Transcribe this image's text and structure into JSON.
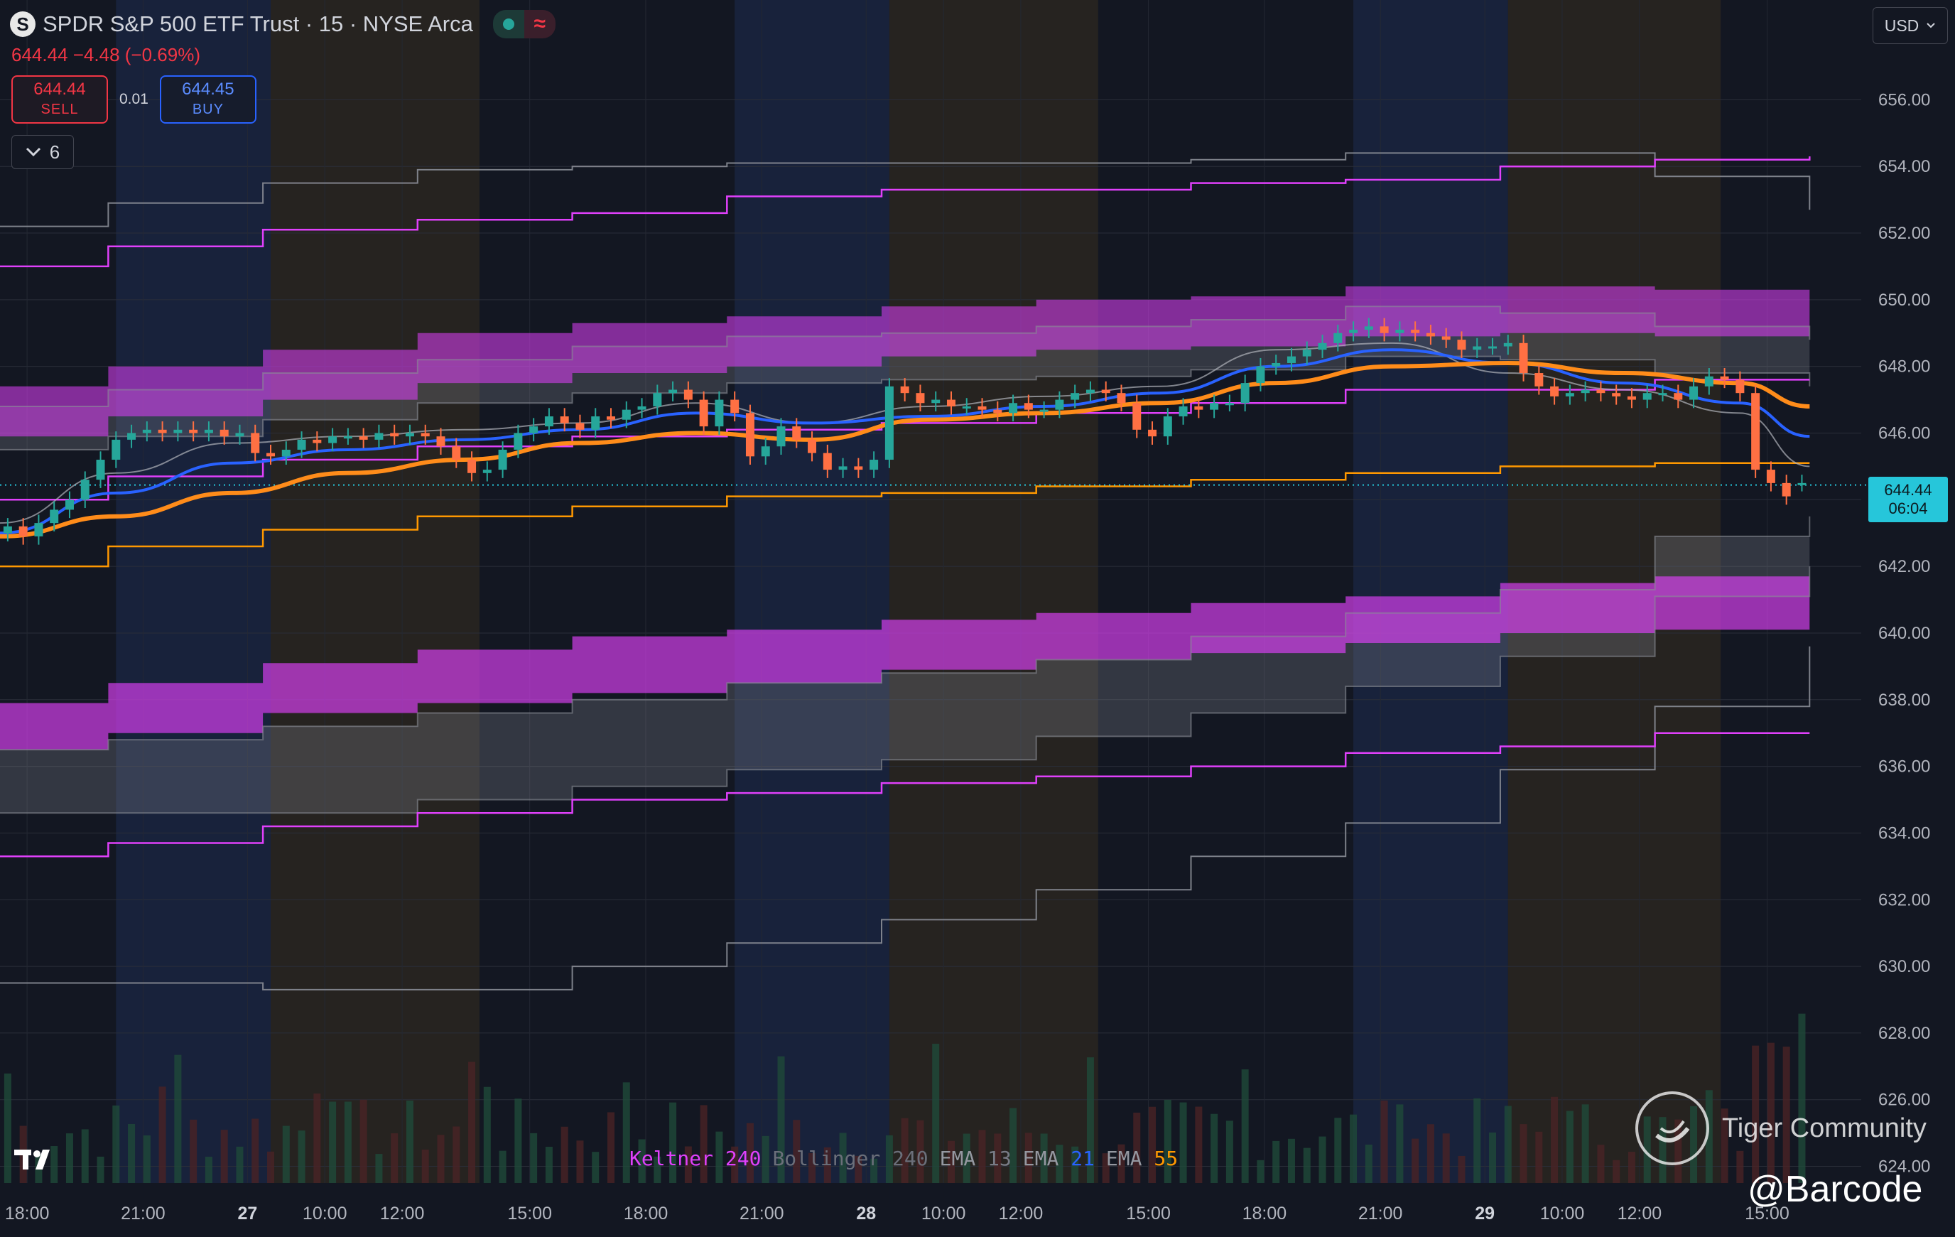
{
  "header": {
    "logo_letter": "S",
    "title": "SPDR S&P 500 ETF Trust · 15 · NYSE Arca",
    "quote": "644.44 −4.48 (−0.69%)",
    "sell_price": "644.44",
    "sell_label": "SELL",
    "spread": "0.01",
    "buy_price": "644.45",
    "buy_label": "BUY",
    "indicator_count": "6",
    "currency": "USD",
    "wave_glyph": "≈"
  },
  "price_tag": {
    "price": "644.44",
    "countdown": "06:04"
  },
  "legend": [
    {
      "name": "Keltner",
      "param": "240",
      "name_color": "#e040fb",
      "param_color": "#e040fb"
    },
    {
      "name": "Bollinger",
      "param": "240",
      "name_color": "#6b6f7a",
      "param_color": "#6b6f7a"
    },
    {
      "name": "EMA",
      "param": "13",
      "name_color": "#9598a1",
      "param_color": "#787b86"
    },
    {
      "name": "EMA",
      "param": "21",
      "name_color": "#9598a1",
      "param_color": "#2962ff"
    },
    {
      "name": "EMA",
      "param": "55",
      "name_color": "#9598a1",
      "param_color": "#ff9800"
    }
  ],
  "watermark": {
    "brand": "Tiger Community",
    "handle": "@Barcode"
  },
  "colors": {
    "background": "#131722",
    "up": "#26a69a",
    "down": "#ff7043",
    "keltner": "#e040fb",
    "bollinger": "#8a8d96",
    "ema13": "#b0b3ba",
    "ema21": "#2962ff",
    "ema55": "#ff8c1a",
    "last_price": "#26c6da",
    "session_pre": "#1a2440",
    "session_post": "#2a2620"
  },
  "chart_data": {
    "type": "line",
    "ylim": [
      623.5,
      657.5
    ],
    "y_ticks": [
      "656.00",
      "654.00",
      "652.00",
      "650.00",
      "648.00",
      "646.00",
      "644.00",
      "642.00",
      "640.00",
      "638.00",
      "636.00",
      "634.00",
      "632.00",
      "630.00",
      "628.00",
      "626.00",
      "624.00"
    ],
    "x_ticks": [
      "18:00",
      "21:00",
      "27",
      "10:00",
      "12:00",
      "15:00",
      "18:00",
      "21:00",
      "28",
      "10:00",
      "12:00",
      "15:00",
      "18:00",
      "21:00",
      "29",
      "10:00",
      "12:00",
      "15:00"
    ],
    "x_tick_pos": [
      0.7,
      3.7,
      6.4,
      8.4,
      10.4,
      13.7,
      16.7,
      19.7,
      22.4,
      24.4,
      26.4,
      29.7,
      32.7,
      35.7,
      38.4,
      40.4,
      42.4,
      45.7
    ],
    "sessions": [
      {
        "type": "pre",
        "from": 3.0,
        "to": 7.0
      },
      {
        "type": "post",
        "from": 7.0,
        "to": 12.4
      },
      {
        "type": "pre",
        "from": 19.0,
        "to": 23.0
      },
      {
        "type": "post",
        "from": 23.0,
        "to": 28.4
      },
      {
        "type": "pre",
        "from": 35.0,
        "to": 39.0
      },
      {
        "type": "post",
        "from": 39.0,
        "to": 44.5
      }
    ],
    "last_price": 644.44,
    "band_x": [
      0,
      2.8,
      6.8,
      10.8,
      14.8,
      18.8,
      22.8,
      26.8,
      30.8,
      34.8,
      38.8,
      42.8,
      46.8
    ],
    "keltner_outer_upper": [
      651.0,
      651.6,
      652.1,
      652.4,
      652.6,
      653.1,
      653.3,
      653.3,
      653.5,
      653.6,
      654.0,
      654.2,
      654.3
    ],
    "keltner_band_upper": [
      647.4,
      648.0,
      648.5,
      649.0,
      649.3,
      649.5,
      649.8,
      650.0,
      650.1,
      650.4,
      650.4,
      650.3,
      650.3
    ],
    "keltner_band_lower": [
      645.9,
      646.5,
      647.0,
      647.5,
      647.8,
      648.0,
      648.3,
      648.5,
      648.6,
      648.9,
      649.0,
      648.9,
      648.9
    ],
    "keltner_mid_upper": [
      644.0,
      644.7,
      645.2,
      645.6,
      645.9,
      646.1,
      646.3,
      646.6,
      646.9,
      647.3,
      647.3,
      647.6,
      647.6
    ],
    "keltner_mid_lower": [
      642.0,
      642.6,
      643.1,
      643.5,
      643.8,
      644.1,
      644.2,
      644.4,
      644.6,
      644.8,
      645.0,
      645.1,
      645.1
    ],
    "keltner_lower_band_upper": [
      637.9,
      638.5,
      639.1,
      639.5,
      639.9,
      640.1,
      640.4,
      640.6,
      640.9,
      641.1,
      641.5,
      641.7,
      641.7
    ],
    "keltner_lower_band_lower": [
      636.5,
      637.0,
      637.6,
      637.9,
      638.2,
      638.5,
      638.9,
      639.2,
      639.4,
      639.7,
      640.0,
      640.1,
      640.1
    ],
    "keltner_outer_lower": [
      633.3,
      633.7,
      634.2,
      634.6,
      635.0,
      635.2,
      635.5,
      635.7,
      636.0,
      636.4,
      636.6,
      637.0,
      637.0
    ],
    "boll_upper": [
      652.2,
      652.9,
      653.5,
      653.9,
      654.0,
      654.1,
      654.1,
      654.1,
      654.2,
      654.4,
      654.4,
      653.7,
      652.7
    ],
    "boll_band_upper": [
      646.8,
      647.3,
      647.8,
      648.2,
      648.6,
      648.9,
      649.0,
      649.2,
      649.4,
      649.8,
      649.6,
      649.2,
      648.8
    ],
    "boll_band_lower": [
      645.5,
      645.9,
      646.4,
      646.9,
      647.2,
      647.5,
      647.6,
      647.7,
      647.9,
      648.3,
      648.2,
      647.8,
      647.4
    ],
    "boll_lower_band_upper": [
      636.5,
      636.8,
      637.2,
      637.6,
      638.0,
      638.5,
      638.8,
      639.2,
      639.9,
      640.6,
      641.3,
      642.9,
      643.5
    ],
    "boll_lower_band_lower": [
      634.6,
      634.6,
      634.6,
      635.0,
      635.4,
      635.9,
      636.2,
      636.9,
      637.6,
      638.4,
      639.3,
      641.1,
      642.0
    ],
    "boll_lower": [
      629.5,
      629.5,
      629.3,
      629.3,
      630.0,
      630.7,
      631.4,
      632.3,
      633.3,
      634.3,
      635.9,
      637.8,
      639.6
    ],
    "series": [
      {
        "name": "EMA 13",
        "x": [
          0,
          3,
          6,
          9,
          12,
          15,
          18,
          21,
          24,
          27,
          30,
          33,
          36,
          39,
          42,
          45,
          46.8
        ],
        "values": [
          643.3,
          644.8,
          645.7,
          645.9,
          646.1,
          646.3,
          646.9,
          646.3,
          646.8,
          647.1,
          647.4,
          648.5,
          648.7,
          647.8,
          647.3,
          646.6,
          645.0
        ]
      },
      {
        "name": "EMA 21",
        "x": [
          0,
          3,
          6,
          9,
          12,
          15,
          18,
          21,
          24,
          27,
          30,
          33,
          36,
          39,
          42,
          45,
          46.8
        ],
        "values": [
          643.0,
          644.2,
          645.1,
          645.5,
          645.8,
          646.1,
          646.6,
          646.3,
          646.5,
          646.8,
          647.2,
          648.0,
          648.5,
          648.1,
          647.5,
          646.9,
          645.9
        ]
      },
      {
        "name": "EMA 55",
        "x": [
          0,
          3,
          6,
          9,
          12,
          15,
          18,
          21,
          24,
          27,
          30,
          33,
          36,
          39,
          42,
          45,
          46.8
        ],
        "values": [
          642.9,
          643.5,
          644.2,
          644.8,
          645.2,
          645.7,
          646.0,
          645.8,
          646.4,
          646.6,
          646.9,
          647.5,
          648.0,
          648.1,
          647.8,
          647.5,
          646.8
        ]
      }
    ],
    "candles": {
      "x": [
        0.2,
        0.6,
        1.0,
        1.4,
        1.8,
        2.2,
        2.6,
        3.0,
        3.4,
        3.8,
        4.2,
        4.6,
        5.0,
        5.4,
        5.8,
        6.2,
        6.6,
        7.0,
        7.4,
        7.8,
        8.2,
        8.6,
        9.0,
        9.4,
        9.8,
        10.2,
        10.6,
        11.0,
        11.4,
        11.8,
        12.2,
        12.6,
        13.0,
        13.4,
        13.8,
        14.2,
        14.6,
        15.0,
        15.4,
        15.8,
        16.2,
        16.6,
        17.0,
        17.4,
        17.8,
        18.2,
        18.6,
        19.0,
        19.4,
        19.8,
        20.2,
        20.6,
        21.0,
        21.4,
        21.8,
        22.2,
        22.6,
        23.0,
        23.4,
        23.8,
        24.2,
        24.6,
        25.0,
        25.4,
        25.8,
        26.2,
        26.6,
        27.0,
        27.4,
        27.8,
        28.2,
        28.6,
        29.0,
        29.4,
        29.8,
        30.2,
        30.6,
        31.0,
        31.4,
        31.8,
        32.2,
        32.6,
        33.0,
        33.4,
        33.8,
        34.2,
        34.6,
        35.0,
        35.4,
        35.8,
        36.2,
        36.6,
        37.0,
        37.4,
        37.8,
        38.2,
        38.6,
        39.0,
        39.4,
        39.8,
        40.2,
        40.6,
        41.0,
        41.4,
        41.8,
        42.2,
        42.6,
        43.0,
        43.4,
        43.8,
        44.2,
        44.6,
        45.0,
        45.4,
        45.8,
        46.2,
        46.6
      ],
      "open": [
        643.0,
        643.2,
        642.9,
        643.3,
        643.7,
        644.0,
        644.6,
        645.2,
        645.8,
        646.0,
        646.1,
        646.0,
        646.1,
        646.0,
        646.1,
        645.9,
        646.0,
        645.4,
        645.3,
        645.5,
        645.8,
        645.7,
        645.9,
        645.9,
        645.8,
        646.0,
        645.9,
        646.0,
        645.9,
        645.6,
        645.2,
        644.8,
        644.9,
        645.5,
        646.0,
        646.2,
        646.5,
        646.3,
        646.1,
        646.5,
        646.4,
        646.7,
        646.8,
        647.2,
        647.3,
        647.0,
        646.2,
        647.0,
        646.6,
        645.3,
        645.6,
        646.2,
        645.8,
        645.4,
        644.9,
        645.0,
        644.9,
        645.2,
        647.4,
        647.2,
        646.9,
        647.0,
        646.8,
        646.8,
        646.7,
        646.6,
        646.9,
        646.7,
        646.7,
        647.0,
        647.2,
        647.3,
        647.2,
        646.9,
        646.1,
        645.9,
        646.5,
        646.8,
        646.7,
        646.9,
        646.9,
        647.5,
        648.0,
        648.1,
        648.3,
        648.5,
        648.7,
        649.0,
        649.1,
        649.2,
        649.0,
        649.1,
        649.0,
        648.9,
        648.8,
        648.5,
        648.6,
        648.6,
        648.7,
        647.8,
        647.4,
        647.1,
        647.2,
        647.3,
        647.2,
        647.1,
        647.0,
        647.2,
        647.2,
        647.0,
        647.4,
        647.7,
        647.6,
        647.2,
        644.9,
        644.5,
        644.5
      ],
      "close": [
        643.2,
        642.9,
        643.3,
        643.7,
        644.0,
        644.6,
        645.2,
        645.8,
        646.0,
        646.1,
        646.0,
        646.1,
        646.0,
        646.1,
        645.9,
        646.0,
        645.4,
        645.3,
        645.5,
        645.8,
        645.7,
        645.9,
        645.9,
        645.8,
        646.0,
        645.9,
        646.0,
        645.9,
        645.6,
        645.2,
        644.8,
        644.9,
        645.5,
        646.0,
        646.2,
        646.5,
        646.3,
        646.1,
        646.5,
        646.4,
        646.7,
        646.8,
        647.2,
        647.3,
        647.0,
        646.2,
        647.0,
        646.6,
        645.3,
        645.6,
        646.2,
        645.8,
        645.4,
        644.9,
        645.0,
        644.9,
        645.2,
        647.4,
        647.2,
        646.9,
        647.0,
        646.8,
        646.8,
        646.7,
        646.6,
        646.9,
        646.7,
        646.7,
        647.0,
        647.2,
        647.3,
        647.2,
        646.9,
        646.1,
        645.9,
        646.5,
        646.8,
        646.7,
        646.9,
        646.9,
        647.5,
        648.0,
        648.1,
        648.3,
        648.5,
        648.7,
        649.0,
        649.1,
        649.2,
        649.0,
        649.1,
        649.0,
        648.9,
        648.8,
        648.5,
        648.6,
        648.6,
        648.7,
        647.8,
        647.4,
        647.1,
        647.2,
        647.3,
        647.2,
        647.1,
        647.0,
        647.2,
        647.2,
        647.0,
        647.4,
        647.7,
        647.6,
        647.2,
        644.9,
        644.5,
        644.1,
        644.5
      ]
    }
  }
}
